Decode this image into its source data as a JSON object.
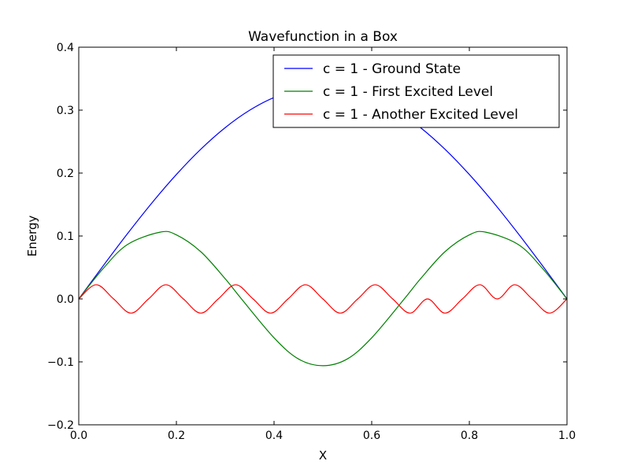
{
  "chart_data": {
    "type": "line",
    "title": "Wavefunction in a Box",
    "xlabel": "X",
    "ylabel": "Energy",
    "xlim": [
      0.0,
      1.0
    ],
    "ylim": [
      -0.2,
      0.4
    ],
    "xticks": [
      0.0,
      0.2,
      0.4,
      0.6,
      0.8,
      1.0
    ],
    "xtick_labels": [
      "0.0",
      "0.2",
      "0.4",
      "0.6",
      "0.8",
      "1.0"
    ],
    "yticks": [
      -0.2,
      -0.1,
      0.0,
      0.1,
      0.2,
      0.3,
      0.4
    ],
    "ytick_labels": [
      "−0.2",
      "−0.1",
      "0.0",
      "0.1",
      "0.2",
      "0.3",
      "0.4"
    ],
    "grid": false,
    "legend_position": "top-right",
    "series": [
      {
        "name": "c = 1 - Ground State",
        "color": "#0000ff",
        "x": [
          0.0,
          0.05,
          0.1,
          0.15,
          0.2,
          0.25,
          0.3,
          0.35,
          0.4,
          0.45,
          0.5,
          0.55,
          0.6,
          0.65,
          0.7,
          0.75,
          0.8,
          0.85,
          0.9,
          0.95,
          1.0
        ],
        "values": [
          0.0,
          0.0526,
          0.1039,
          0.1527,
          0.1977,
          0.2379,
          0.2722,
          0.2998,
          0.3201,
          0.3325,
          0.3367,
          0.3325,
          0.3201,
          0.2998,
          0.2722,
          0.2379,
          0.1977,
          0.1527,
          0.1039,
          0.0526,
          0.0
        ]
      },
      {
        "name": "c = 1 - First Excited Level",
        "color": "#008000",
        "x": [
          0.0,
          0.05,
          0.1,
          0.1667,
          0.2,
          0.25,
          0.3,
          0.3333,
          0.4,
          0.45,
          0.5,
          0.55,
          0.6,
          0.6667,
          0.7,
          0.75,
          0.8,
          0.8333,
          0.9,
          0.95,
          1.0
        ],
        "values": [
          0.0,
          0.0483,
          0.0866,
          0.1061,
          0.1018,
          0.075,
          0.032,
          0.0,
          -0.0618,
          -0.0954,
          -0.1061,
          -0.0954,
          -0.0618,
          0.0,
          0.032,
          0.075,
          0.1018,
          0.1061,
          0.0866,
          0.0483,
          0.0
        ]
      },
      {
        "name": "c = 1 - Another Excited Level",
        "color": "#ff0000",
        "x": [
          0.0,
          0.0357,
          0.0714,
          0.1071,
          0.1429,
          0.1786,
          0.2143,
          0.25,
          0.2857,
          0.3214,
          0.3571,
          0.3929,
          0.4286,
          0.4643,
          0.5,
          0.5357,
          0.5714,
          0.6071,
          0.6429,
          0.6786,
          0.7143,
          0.75,
          0.7857,
          0.8214,
          0.8571,
          0.8929,
          0.9286,
          0.9643,
          1.0
        ],
        "values": [
          0.0,
          0.0226,
          0.0,
          -0.0226,
          0.0,
          0.0226,
          0.0,
          -0.0226,
          0.0,
          0.0226,
          0.0,
          -0.0226,
          0.0,
          0.0226,
          0.0,
          -0.0226,
          0.0,
          0.0226,
          0.0,
          -0.0226,
          0.0,
          -0.0226,
          0.0,
          0.0226,
          0.0,
          0.0226,
          0.0,
          -0.0226,
          0.0
        ]
      }
    ]
  }
}
